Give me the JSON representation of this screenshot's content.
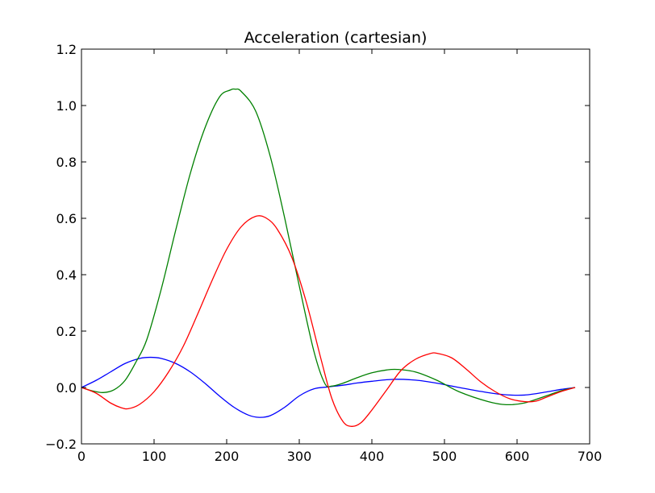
{
  "chart_data": {
    "type": "line",
    "title": "Acceleration (cartesian)",
    "xlabel": "",
    "ylabel": "",
    "xlim": [
      0,
      700
    ],
    "ylim": [
      -0.2,
      1.2
    ],
    "grid": false,
    "legend": "none",
    "x_ticks": [
      0,
      100,
      200,
      300,
      400,
      500,
      600,
      700
    ],
    "x_tick_labels": [
      "0",
      "100",
      "200",
      "300",
      "400",
      "500",
      "600",
      "700"
    ],
    "y_ticks": [
      -0.2,
      0.0,
      0.2,
      0.4,
      0.6,
      0.8,
      1.0,
      1.2
    ],
    "y_tick_labels": [
      "−0.2",
      "0.0",
      "0.2",
      "0.4",
      "0.6",
      "0.8",
      "1.0",
      "1.2"
    ],
    "series": [
      {
        "color": "#0000ff",
        "x": [
          0,
          20,
          40,
          60,
          80,
          95,
          110,
          130,
          150,
          170,
          190,
          210,
          230,
          245,
          260,
          280,
          300,
          320,
          340,
          360,
          380,
          400,
          430,
          460,
          490,
          520,
          550,
          580,
          610,
          640,
          660,
          680
        ],
        "y": [
          0.0,
          0.025,
          0.055,
          0.085,
          0.103,
          0.107,
          0.103,
          0.085,
          0.055,
          0.015,
          -0.03,
          -0.07,
          -0.098,
          -0.106,
          -0.1,
          -0.07,
          -0.03,
          -0.005,
          0.002,
          0.008,
          0.016,
          0.022,
          0.029,
          0.026,
          0.015,
          0.0,
          -0.014,
          -0.025,
          -0.027,
          -0.016,
          -0.007,
          0.0
        ]
      },
      {
        "color": "#008000",
        "x": [
          0,
          15,
          30,
          45,
          60,
          75,
          90,
          110,
          130,
          150,
          170,
          190,
          205,
          212,
          220,
          240,
          260,
          280,
          300,
          320,
          335,
          345,
          360,
          380,
          400,
          420,
          435,
          460,
          490,
          520,
          560,
          585,
          610,
          640,
          660,
          680
        ],
        "y": [
          0.0,
          -0.012,
          -0.018,
          -0.008,
          0.025,
          0.09,
          0.17,
          0.35,
          0.56,
          0.76,
          0.92,
          1.03,
          1.055,
          1.058,
          1.05,
          0.98,
          0.82,
          0.6,
          0.36,
          0.13,
          0.015,
          0.005,
          0.015,
          0.035,
          0.052,
          0.062,
          0.064,
          0.055,
          0.025,
          -0.015,
          -0.05,
          -0.061,
          -0.055,
          -0.03,
          -0.012,
          0.0
        ]
      },
      {
        "color": "#ff0000",
        "x": [
          0,
          20,
          40,
          55,
          65,
          80,
          100,
          120,
          140,
          160,
          180,
          200,
          220,
          240,
          255,
          270,
          290,
          310,
          330,
          345,
          360,
          372,
          385,
          400,
          420,
          440,
          460,
          480,
          490,
          510,
          530,
          550,
          570,
          590,
          610,
          625,
          640,
          660,
          680
        ],
        "y": [
          0.0,
          -0.02,
          -0.055,
          -0.072,
          -0.075,
          -0.06,
          -0.015,
          0.055,
          0.145,
          0.26,
          0.38,
          0.49,
          0.57,
          0.607,
          0.6,
          0.56,
          0.46,
          0.3,
          0.1,
          -0.04,
          -0.12,
          -0.138,
          -0.125,
          -0.08,
          -0.01,
          0.06,
          0.1,
          0.12,
          0.121,
          0.105,
          0.065,
          0.02,
          -0.015,
          -0.04,
          -0.05,
          -0.049,
          -0.035,
          -0.015,
          0.0
        ]
      }
    ]
  }
}
